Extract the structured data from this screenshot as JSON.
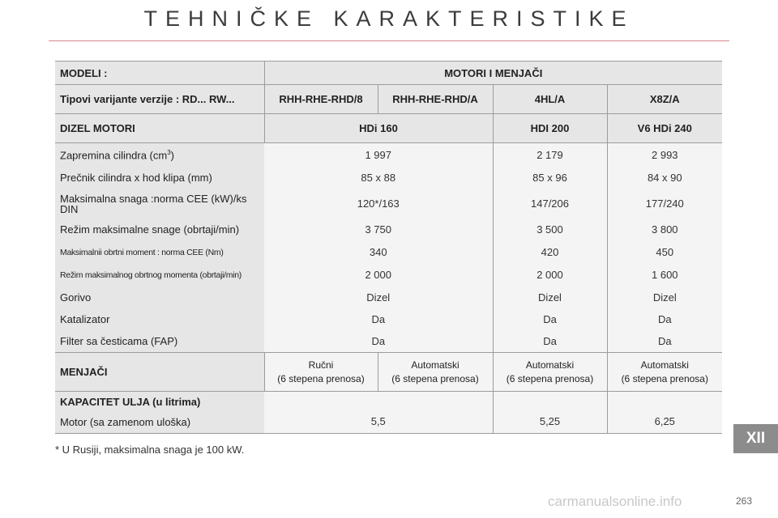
{
  "page_title": "TEHNIČKE KARAKTERISTIKE",
  "table": {
    "col_header_left": "MODELI :",
    "col_header_main": "MOTORI I MENJAČI",
    "variants_label": "Tipovi varijante verzije : RD... RW...",
    "variants": [
      "RHH-RHE-RHD/8",
      "RHH-RHE-RHD/A",
      "4HL/A",
      "X8Z/A"
    ],
    "engines_label": "DIZEL MOTORI",
    "engines": [
      "HDi 160",
      "HDI 200",
      "V6 HDi 240"
    ],
    "rows": [
      {
        "label": "Zapremina cilindra (cm",
        "label_sup": "3",
        "label_end": ")",
        "values": [
          "1 997",
          "2 179",
          "2 993"
        ]
      },
      {
        "label": "Prečnik cilindra x hod klipa (mm)",
        "values": [
          "85 x 88",
          "85 x 96",
          "84 x 90"
        ]
      },
      {
        "label": "Maksimalna snaga :norma CEE (kW)/ks DIN",
        "values": [
          "120*/163",
          "147/206",
          "177/240"
        ]
      },
      {
        "label": "Režim maksimalne snage (obrtaji/min)",
        "values": [
          "3 750",
          "3 500",
          "3 800"
        ]
      },
      {
        "label": "Maksimalnii obrtni moment : norma CEE (Nm)",
        "values": [
          "340",
          "420",
          "450"
        ]
      },
      {
        "label": "Režim maksimalnog obrtnog momenta (obrtaji/min)",
        "values": [
          "2 000",
          "2 000",
          "1 600"
        ]
      },
      {
        "label": "Gorivo",
        "values": [
          "Dizel",
          "Dizel",
          "Dizel"
        ]
      },
      {
        "label": "Katalizator",
        "values": [
          "Da",
          "Da",
          "Da"
        ]
      },
      {
        "label": "Filter sa česticama (FAP)",
        "values": [
          "Da",
          "Da",
          "Da"
        ]
      }
    ],
    "gearbox_label": "MENJAČI",
    "gearboxes": [
      {
        "type": "Ručni",
        "detail": "(6 stepena prenosa)"
      },
      {
        "type": "Automatski",
        "detail": "(6 stepena prenosa)"
      },
      {
        "type": "Automatski",
        "detail": "(6 stepena prenosa)"
      },
      {
        "type": "Automatski",
        "detail": "(6 stepena prenosa)"
      }
    ],
    "oil_label": "KAPACITET ULJA (u litrima)",
    "oil_row_label": "Motor (sa zamenom uloška)",
    "oil_values": [
      "5,5",
      "5,25",
      "6,25"
    ]
  },
  "footnote": "* U Rusiji, maksimalna snaga je 100 kW.",
  "section_tab": "XII",
  "page_number": "263",
  "watermark": "carmanualsonline.info"
}
